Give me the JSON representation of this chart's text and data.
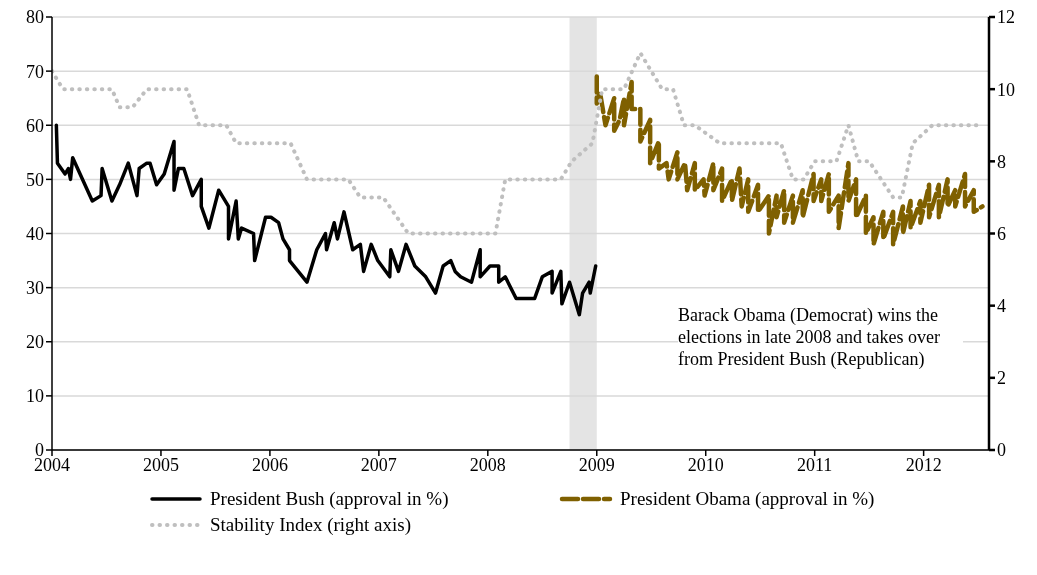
{
  "chart_data": {
    "type": "line",
    "legend": "bottom",
    "grid": "y",
    "xlim": [
      2004,
      2012.6
    ],
    "xticks": [
      2004,
      2005,
      2006,
      2007,
      2008,
      2009,
      2010,
      2011,
      2012
    ],
    "ylim": [
      0,
      80
    ],
    "yticks": [
      0,
      10,
      20,
      30,
      40,
      50,
      60,
      70,
      80
    ],
    "y2lim": [
      0,
      12
    ],
    "y2ticks": [
      0,
      2,
      4,
      6,
      8,
      10,
      12
    ],
    "bands": [
      {
        "axis": "x",
        "from": 2008.75,
        "to": 2009.0,
        "color": "#d9d9d9"
      }
    ],
    "annotations": [
      "Barack Obama (Democrat) wins the elections in late 2008 and takes over from President Bush (Republican)"
    ],
    "series": [
      {
        "name": "President Bush (approval in %)",
        "color": "#000000",
        "line_style": "solid",
        "x": [
          2004.04,
          2004.05,
          2004.12,
          2004.15,
          2004.17,
          2004.19,
          2004.37,
          2004.45,
          2004.46,
          2004.55,
          2004.62,
          2004.7,
          2004.78,
          2004.8,
          2004.87,
          2004.9,
          2004.96,
          2005.03,
          2005.12,
          2005.12,
          2005.16,
          2005.21,
          2005.29,
          2005.37,
          2005.37,
          2005.44,
          2005.53,
          2005.62,
          2005.62,
          2005.69,
          2005.71,
          2005.74,
          2005.85,
          2005.86,
          2005.96,
          2006.01,
          2006.08,
          2006.12,
          2006.18,
          2006.18,
          2006.34,
          2006.43,
          2006.51,
          2006.52,
          2006.59,
          2006.62,
          2006.68,
          2006.76,
          2006.83,
          2006.86,
          2006.93,
          2006.99,
          2007.1,
          2007.11,
          2007.18,
          2007.25,
          2007.33,
          2007.43,
          2007.52,
          2007.59,
          2007.66,
          2007.7,
          2007.75,
          2007.85,
          2007.93,
          2007.93,
          2008.02,
          2008.1,
          2008.1,
          2008.16,
          2008.26,
          2008.43,
          2008.5,
          2008.59,
          2008.59,
          2008.67,
          2008.68,
          2008.75,
          2008.84,
          2008.87,
          2008.93,
          2008.94,
          2008.99
        ],
        "values": [
          60,
          53,
          51,
          52,
          50,
          54,
          46,
          47,
          52,
          46,
          49,
          53,
          47,
          52,
          53,
          53,
          49,
          51,
          57,
          48,
          52,
          52,
          47,
          50,
          45,
          41,
          48,
          45,
          39,
          46,
          39,
          41,
          40,
          35,
          43,
          43,
          42,
          39,
          37,
          35,
          31,
          37,
          40,
          37,
          42,
          39,
          44,
          37,
          38,
          33,
          38,
          35,
          32,
          37,
          33,
          38,
          34,
          32,
          29,
          34,
          35,
          33,
          32,
          31,
          37,
          32,
          34,
          34,
          31,
          32,
          28,
          28,
          32,
          33,
          29,
          33,
          27,
          31,
          25,
          29,
          31,
          29,
          34
        ],
        "axis": "y"
      },
      {
        "name": "President Obama (approval in %)",
        "color": "#7f6000",
        "line_style": "dashed",
        "x": [
          2009.0,
          2009.0,
          2009.03,
          2009.08,
          2009.16,
          2009.16,
          2009.21,
          2009.25,
          2009.25,
          2009.32,
          2009.32,
          2009.4,
          2009.4,
          2009.49,
          2009.49,
          2009.57,
          2009.57,
          2009.64,
          2009.66,
          2009.74,
          2009.74,
          2009.81,
          2009.83,
          2009.9,
          2009.9,
          2009.98,
          2009.99,
          2010.07,
          2010.07,
          2010.15,
          2010.15,
          2010.24,
          2010.24,
          2010.31,
          2010.33,
          2010.39,
          2010.39,
          2010.48,
          2010.48,
          2010.58,
          2010.58,
          2010.65,
          2010.65,
          2010.72,
          2010.72,
          2010.8,
          2010.8,
          2010.89,
          2010.89,
          2010.99,
          2010.99,
          2011.06,
          2011.06,
          2011.13,
          2011.13,
          2011.22,
          2011.22,
          2011.31,
          2011.31,
          2011.38,
          2011.38,
          2011.47,
          2011.47,
          2011.54,
          2011.54,
          2011.63,
          2011.63,
          2011.72,
          2011.72,
          2011.81,
          2011.81,
          2011.88,
          2011.88,
          2011.97,
          2011.97,
          2012.05,
          2012.05,
          2012.14,
          2012.14,
          2012.22,
          2012.22,
          2012.29,
          2012.29,
          2012.38,
          2012.38,
          2012.46,
          2012.46,
          2012.54
        ],
        "values": [
          69,
          64,
          66,
          60,
          65,
          59,
          61,
          65,
          60,
          68,
          63,
          63,
          57,
          61,
          53,
          57,
          52,
          53,
          50,
          55,
          50,
          53,
          48,
          53,
          48,
          50,
          47,
          53,
          48,
          52,
          46,
          50,
          46,
          52,
          45,
          50,
          44,
          49,
          44,
          47,
          40,
          47,
          43,
          48,
          42,
          47,
          42,
          48,
          43,
          51,
          46,
          50,
          46,
          51,
          44,
          47,
          41,
          53,
          46,
          50,
          43,
          47,
          40,
          43,
          38,
          44,
          39,
          44,
          38,
          45,
          40,
          46,
          41,
          46,
          42,
          49,
          43,
          49,
          43,
          50,
          45,
          48,
          45,
          51,
          45,
          48,
          44,
          45
        ],
        "axis": "y"
      },
      {
        "name": "Stability Index (right axis)",
        "color": "#bfbfbf",
        "line_style": "dotted",
        "x": [
          2004.0,
          2004.1,
          2004.55,
          2004.62,
          2004.74,
          2004.87,
          2005.24,
          2005.35,
          2005.6,
          2005.69,
          2006.19,
          2006.34,
          2006.72,
          2006.83,
          2007.04,
          2007.27,
          2008.07,
          2008.16,
          2008.67,
          2008.77,
          2008.96,
          2009.05,
          2009.25,
          2009.4,
          2009.5,
          2009.6,
          2009.7,
          2009.8,
          2009.9,
          2010.13,
          2010.69,
          2010.8,
          2010.9,
          2011.0,
          2011.2,
          2011.31,
          2011.4,
          2011.5,
          2011.72,
          2011.8,
          2011.9,
          2012.08,
          2012.49
        ],
        "values": [
          10.5,
          10,
          10,
          9.5,
          9.5,
          10,
          10,
          9,
          9,
          8.5,
          8.5,
          7.5,
          7.5,
          7,
          7,
          6,
          6,
          7.5,
          7.5,
          8,
          8.5,
          10,
          10,
          11,
          10.5,
          10,
          10,
          9,
          9,
          8.5,
          8.5,
          7.5,
          7.5,
          8,
          8,
          9,
          8,
          8,
          7,
          7,
          8.5,
          9,
          9
        ],
        "axis": "y2"
      }
    ]
  }
}
